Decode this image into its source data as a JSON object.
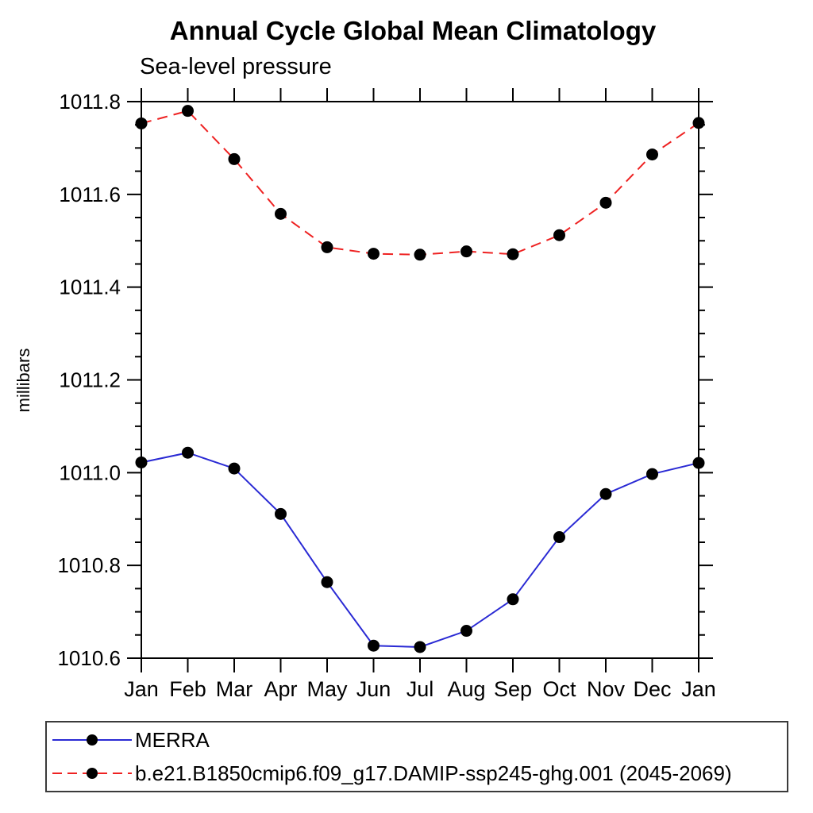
{
  "chart_data": {
    "type": "line",
    "title": "Annual Cycle Global Mean Climatology",
    "subtitle": "Sea-level pressure",
    "ylabel": "millibars",
    "xlabel": "",
    "categories": [
      "Jan",
      "Feb",
      "Mar",
      "Apr",
      "May",
      "Jun",
      "Jul",
      "Aug",
      "Sep",
      "Oct",
      "Nov",
      "Dec",
      "Jan"
    ],
    "ylim": [
      1010.6,
      1011.8
    ],
    "ytick_major_values": [
      1010.6,
      1010.8,
      1011.0,
      1011.2,
      1011.4,
      1011.6,
      1011.8
    ],
    "ytick_major_labels": [
      "1010.6",
      "1010.8",
      "1011.0",
      "1011.2",
      "1011.4",
      "1011.6",
      "1011.8"
    ],
    "ytick_minor_step": 0.05,
    "grid": false,
    "legend_position": "bottom-left-box",
    "axis_color": "#000000",
    "marker_color": "#000000",
    "series": [
      {
        "name": "MERRA",
        "color": "#2a2ad4",
        "style": "solid",
        "marker": "circle",
        "values": [
          1011.022,
          1011.043,
          1011.009,
          1010.911,
          1010.764,
          1010.627,
          1010.624,
          1010.659,
          1010.727,
          1010.861,
          1010.954,
          1010.997,
          1011.021
        ]
      },
      {
        "name": "b.e21.B1850cmip6.f09_g17.DAMIP-ssp245-ghg.001 (2045-2069)",
        "color": "#ee2222",
        "style": "dashed",
        "marker": "circle",
        "values": [
          1011.753,
          1011.78,
          1011.676,
          1011.558,
          1011.486,
          1011.472,
          1011.47,
          1011.477,
          1011.471,
          1011.512,
          1011.582,
          1011.686,
          1011.754
        ]
      }
    ]
  }
}
